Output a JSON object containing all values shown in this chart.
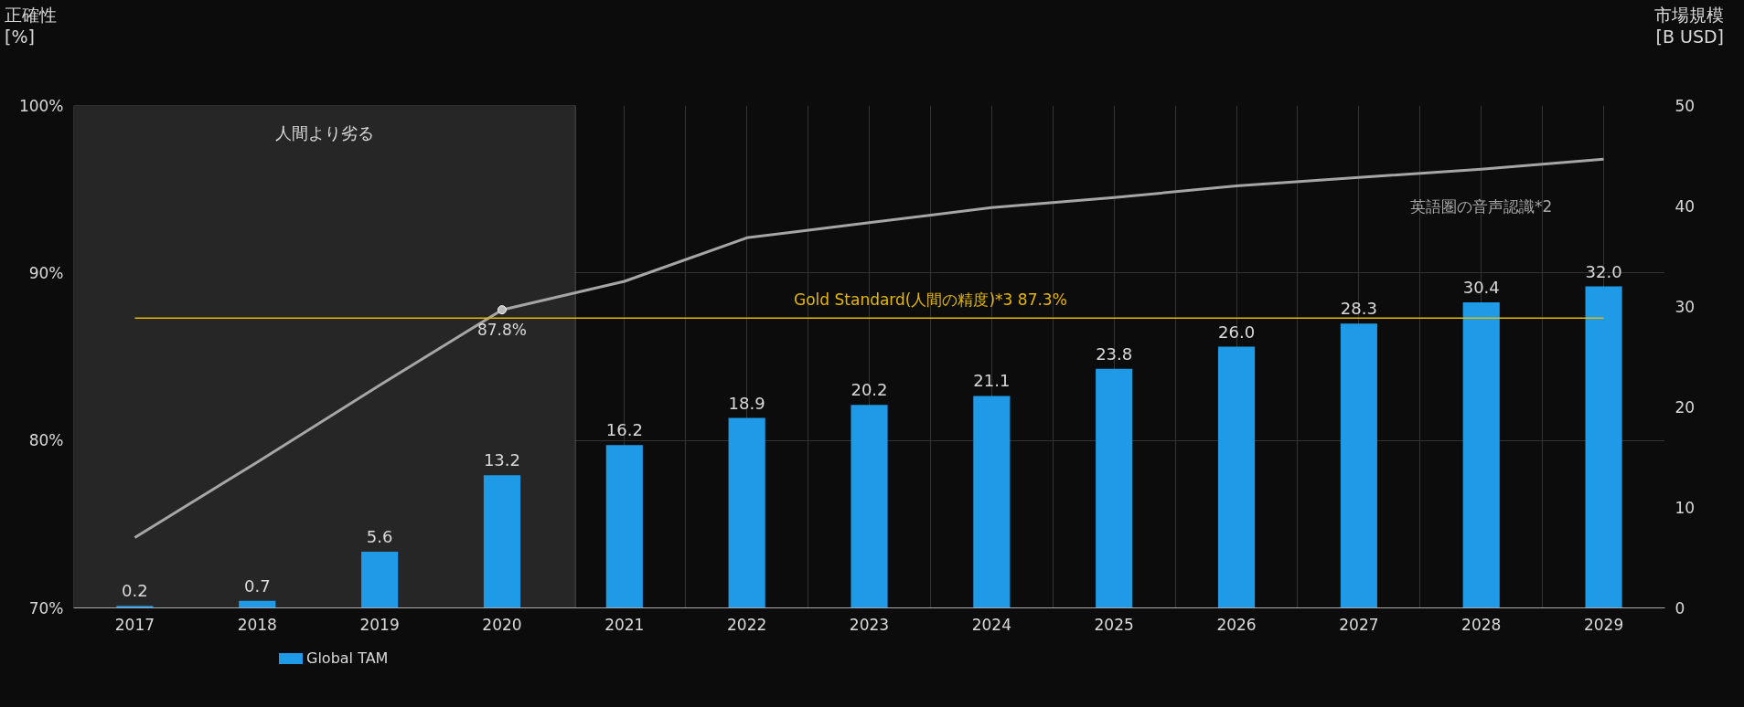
{
  "chart_data": {
    "type": "bar",
    "categories": [
      "2017",
      "2018",
      "2019",
      "2020",
      "2021",
      "2022",
      "2023",
      "2024",
      "2025",
      "2026",
      "2027",
      "2028",
      "2029"
    ],
    "ylabel": "正確性\n[%]",
    "y2label": "市場規模\n[B USD]",
    "ylim": [
      70,
      100
    ],
    "yticks": [
      {
        "value": 70,
        "label": "70%"
      },
      {
        "value": 80,
        "label": "80%"
      },
      {
        "value": 90,
        "label": "90%"
      },
      {
        "value": 100,
        "label": "100%"
      }
    ],
    "y2lim": [
      0,
      50
    ],
    "y2ticks": [
      0,
      10,
      20,
      30,
      40,
      50
    ],
    "series": [
      {
        "name": "Global TAM",
        "axis": "y2",
        "color": "#1f9ae6",
        "values": [
          0.2,
          0.7,
          5.6,
          13.2,
          16.2,
          18.9,
          20.2,
          21.1,
          23.8,
          26.0,
          28.3,
          30.4,
          32.0
        ],
        "value_labels": [
          "0.2",
          "0.7",
          "5.6",
          "13.2",
          "16.2",
          "18.9",
          "20.2",
          "21.1",
          "23.8",
          "26.0",
          "28.3",
          "30.4",
          "32.0"
        ]
      },
      {
        "name": "英語圏の音声認識*2",
        "type": "line",
        "color": "#a6a6a6",
        "values": [
          74.2,
          78.7,
          83.3,
          87.8,
          89.5,
          92.1,
          93.0,
          93.9,
          94.5,
          95.2,
          95.7,
          96.2,
          96.8
        ]
      }
    ],
    "marker": "none",
    "line_style": "solid",
    "annotations": [
      {
        "text": "87.8%",
        "x": "2020",
        "y": 87.8
      }
    ],
    "ref_lines": [
      {
        "axis": "y",
        "value": 87.3,
        "label": "Gold Standard(人間の精度)*3 87.3%",
        "color": "#e6b800"
      }
    ],
    "bands": [
      {
        "axis": "x",
        "from": "2017",
        "to": "2020",
        "label": "人間より劣る",
        "color": "#262626"
      }
    ],
    "grid": true,
    "legend": "bottom left"
  }
}
